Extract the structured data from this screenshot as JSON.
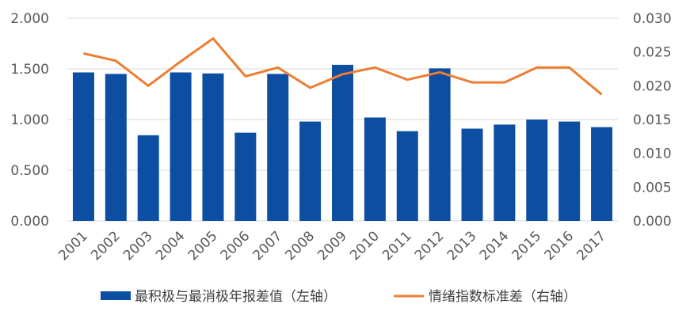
{
  "chart_data": {
    "type": "bar+line",
    "categories": [
      "2001",
      "2002",
      "2003",
      "2004",
      "2005",
      "2006",
      "2007",
      "2008",
      "2009",
      "2010",
      "2011",
      "2012",
      "2013",
      "2014",
      "2015",
      "2016",
      "2017"
    ],
    "series": [
      {
        "name": "最积极与最消极年报差值（左轴）",
        "type": "bar",
        "axis": "left",
        "color": "#0b4ea2",
        "values": [
          1.465,
          1.45,
          0.845,
          1.465,
          1.455,
          0.87,
          1.45,
          0.98,
          1.54,
          1.02,
          0.885,
          1.505,
          0.91,
          0.95,
          1.0,
          0.98,
          0.925
        ]
      },
      {
        "name": "情绪指数标准差（右轴）",
        "type": "line",
        "axis": "right",
        "color": "#ed7d31",
        "values": [
          0.0248,
          0.0237,
          0.02,
          0.0236,
          0.027,
          0.0214,
          0.0227,
          0.0197,
          0.0217,
          0.0227,
          0.0209,
          0.022,
          0.0205,
          0.0205,
          0.0227,
          0.0227,
          0.0187
        ]
      }
    ],
    "y_left": {
      "min": 0,
      "max": 2,
      "ticks": [
        "0.000",
        "0.500",
        "1.000",
        "1.500",
        "2.000"
      ]
    },
    "y_right": {
      "min": 0,
      "max": 0.03,
      "ticks": [
        "0.000",
        "0.005",
        "0.010",
        "0.015",
        "0.020",
        "0.025",
        "0.030"
      ]
    },
    "grid": true,
    "legend_position": "bottom"
  }
}
